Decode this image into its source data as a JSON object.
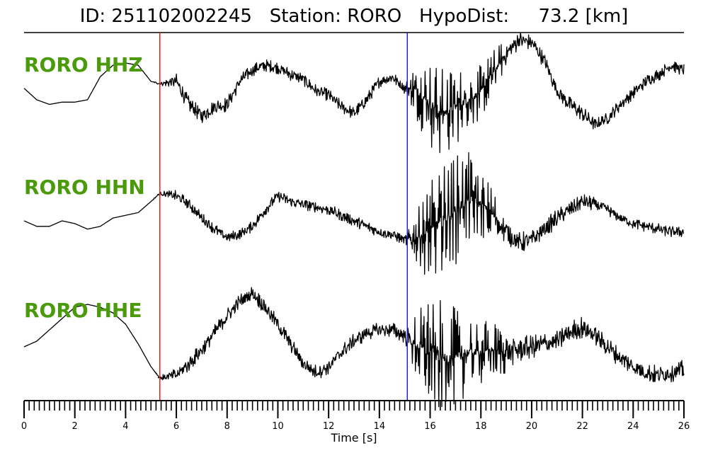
{
  "title": {
    "id_label": "ID:",
    "id_value": "251102002245",
    "station_label": "Station:",
    "station_value": "RORO",
    "hypodist_label": "HypoDist:",
    "hypodist_value": "73.2",
    "hypodist_unit": "[km]"
  },
  "chart_data": {
    "type": "line",
    "xlabel": "Time [s]",
    "xlim": [
      0,
      26
    ],
    "x_major_ticks": [
      0,
      2,
      4,
      6,
      8,
      10,
      12,
      14,
      16,
      18,
      20,
      22,
      24,
      26
    ],
    "x_minor_step": 0.2,
    "picks": [
      {
        "phase": "P",
        "time": 5.35,
        "color": "#e8201c"
      },
      {
        "phase": "S",
        "time": 15.1,
        "color": "#1f1fd6"
      }
    ],
    "label_color": "#4a9a0c",
    "trace_color": "#000000",
    "series": [
      {
        "name": "RORO HHZ",
        "times": [
          0,
          0.5,
          1.0,
          1.5,
          2.0,
          2.5,
          3.0,
          3.5,
          4.0,
          4.5,
          5.0,
          5.35,
          6.0,
          6.5,
          7.0,
          7.5,
          8.0,
          8.5,
          9.0,
          9.5,
          10.0,
          10.5,
          11.0,
          11.5,
          12.0,
          12.5,
          13.0,
          13.5,
          14.0,
          14.5,
          15.0,
          15.5,
          16.0,
          16.5,
          17.0,
          17.5,
          18.0,
          18.5,
          19.0,
          19.5,
          20.0,
          20.5,
          21.0,
          21.5,
          22.0,
          22.5,
          23.0,
          23.5,
          24.0,
          24.5,
          25.0,
          25.5,
          26.0
        ],
        "values": [
          0.05,
          -0.2,
          -0.3,
          -0.25,
          -0.25,
          -0.2,
          0.3,
          0.55,
          0.6,
          0.55,
          0.2,
          0.15,
          0.2,
          -0.3,
          -0.55,
          -0.35,
          -0.3,
          0.2,
          0.45,
          0.55,
          0.5,
          0.35,
          0.25,
          0.0,
          -0.1,
          -0.35,
          -0.5,
          -0.2,
          0.2,
          0.3,
          0.05,
          0.0,
          -0.3,
          -0.5,
          -0.35,
          -0.2,
          -0.05,
          0.4,
          0.8,
          1.1,
          1.05,
          0.65,
          0.0,
          -0.3,
          -0.5,
          -0.75,
          -0.6,
          -0.3,
          -0.05,
          0.2,
          0.35,
          0.55,
          0.45
        ],
        "noise": [
          0.0,
          0.0,
          0.0,
          0.0,
          0.0,
          0.0,
          0.0,
          0.0,
          0.0,
          0.0,
          0.0,
          0.05,
          0.25,
          0.25,
          0.25,
          0.25,
          0.25,
          0.22,
          0.2,
          0.2,
          0.2,
          0.2,
          0.2,
          0.2,
          0.2,
          0.2,
          0.2,
          0.2,
          0.2,
          0.2,
          0.2,
          0.7,
          0.95,
          1.0,
          0.85,
          0.7,
          0.6,
          0.5,
          0.35,
          0.3,
          0.25,
          0.25,
          0.25,
          0.25,
          0.25,
          0.2,
          0.2,
          0.2,
          0.2,
          0.2,
          0.2,
          0.2,
          0.2
        ]
      },
      {
        "name": "RORO HHN",
        "times": [
          0,
          0.5,
          1.0,
          1.5,
          2.0,
          2.5,
          3.0,
          3.5,
          4.0,
          4.5,
          5.0,
          5.35,
          6.0,
          6.5,
          7.0,
          7.5,
          8.0,
          8.5,
          9.0,
          9.5,
          10.0,
          10.5,
          11.0,
          11.5,
          12.0,
          12.5,
          13.0,
          13.5,
          14.0,
          14.5,
          15.0,
          15.5,
          16.0,
          16.5,
          17.0,
          17.5,
          18.0,
          18.5,
          19.0,
          19.5,
          20.0,
          20.5,
          21.0,
          21.5,
          22.0,
          22.5,
          23.0,
          23.5,
          24.0,
          24.5,
          25.0,
          25.5,
          26.0
        ],
        "values": [
          0.0,
          -0.1,
          -0.1,
          0.0,
          -0.05,
          -0.15,
          -0.1,
          0.05,
          0.1,
          0.15,
          0.35,
          0.5,
          0.45,
          0.3,
          0.05,
          -0.15,
          -0.3,
          -0.25,
          -0.1,
          0.2,
          0.45,
          0.35,
          0.3,
          0.25,
          0.2,
          0.1,
          0.0,
          -0.1,
          -0.2,
          -0.25,
          -0.35,
          -0.3,
          -0.2,
          0.0,
          0.2,
          0.4,
          0.3,
          0.1,
          -0.2,
          -0.4,
          -0.35,
          -0.15,
          0.05,
          0.2,
          0.35,
          0.3,
          0.2,
          0.05,
          -0.05,
          -0.1,
          -0.15,
          -0.2,
          -0.2
        ],
        "noise": [
          0.0,
          0.0,
          0.0,
          0.0,
          0.0,
          0.0,
          0.0,
          0.0,
          0.0,
          0.0,
          0.0,
          0.05,
          0.15,
          0.15,
          0.15,
          0.15,
          0.15,
          0.15,
          0.15,
          0.15,
          0.15,
          0.15,
          0.15,
          0.15,
          0.15,
          0.15,
          0.15,
          0.15,
          0.15,
          0.15,
          0.15,
          0.5,
          0.9,
          1.0,
          1.0,
          0.85,
          0.6,
          0.5,
          0.35,
          0.3,
          0.25,
          0.25,
          0.25,
          0.2,
          0.2,
          0.2,
          0.15,
          0.15,
          0.15,
          0.15,
          0.15,
          0.15,
          0.15
        ]
      },
      {
        "name": "RORO HHE",
        "times": [
          0,
          0.5,
          1.0,
          1.5,
          2.0,
          2.5,
          3.0,
          3.5,
          4.0,
          4.5,
          5.0,
          5.35,
          6.0,
          6.5,
          7.0,
          7.5,
          8.0,
          8.5,
          9.0,
          9.5,
          10.0,
          10.5,
          11.0,
          11.5,
          12.0,
          12.5,
          13.0,
          13.5,
          14.0,
          14.5,
          15.0,
          15.5,
          16.0,
          16.5,
          17.0,
          17.5,
          18.0,
          18.5,
          19.0,
          19.5,
          20.0,
          20.5,
          21.0,
          21.5,
          22.0,
          22.5,
          23.0,
          23.5,
          24.0,
          24.5,
          25.0,
          25.5,
          26.0
        ],
        "values": [
          0.0,
          0.1,
          0.3,
          0.5,
          0.7,
          0.75,
          0.7,
          0.6,
          0.4,
          0.05,
          -0.35,
          -0.55,
          -0.5,
          -0.3,
          -0.05,
          0.25,
          0.55,
          0.8,
          0.95,
          0.7,
          0.4,
          0.05,
          -0.3,
          -0.45,
          -0.35,
          -0.1,
          0.1,
          0.25,
          0.3,
          0.3,
          0.2,
          0.0,
          -0.1,
          -0.2,
          -0.2,
          -0.1,
          -0.1,
          -0.05,
          -0.1,
          -0.05,
          0.0,
          0.05,
          0.1,
          0.25,
          0.35,
          0.2,
          0.0,
          -0.2,
          -0.35,
          -0.45,
          -0.5,
          -0.45,
          -0.4
        ],
        "noise": [
          0.0,
          0.0,
          0.0,
          0.0,
          0.0,
          0.0,
          0.0,
          0.0,
          0.0,
          0.0,
          0.0,
          0.05,
          0.2,
          0.2,
          0.2,
          0.2,
          0.2,
          0.2,
          0.2,
          0.2,
          0.2,
          0.2,
          0.2,
          0.2,
          0.2,
          0.2,
          0.2,
          0.2,
          0.2,
          0.2,
          0.2,
          0.7,
          1.0,
          1.0,
          0.9,
          0.7,
          0.6,
          0.5,
          0.4,
          0.35,
          0.3,
          0.3,
          0.3,
          0.3,
          0.3,
          0.25,
          0.25,
          0.25,
          0.25,
          0.25,
          0.25,
          0.25,
          0.25
        ]
      }
    ]
  }
}
